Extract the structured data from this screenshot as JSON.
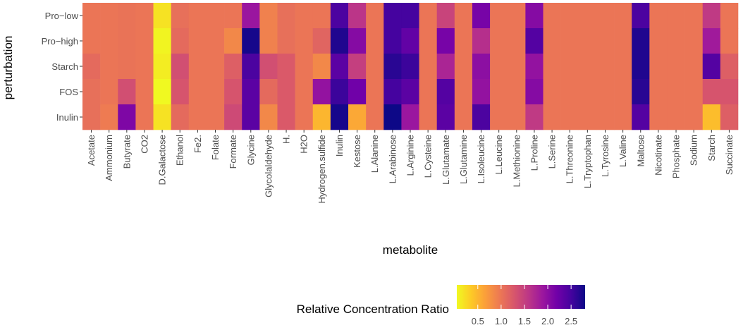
{
  "chart_data": {
    "type": "heatmap",
    "xlabel": "metabolite",
    "ylabel": "perturbation",
    "x": [
      "Acetate",
      "Ammonium",
      "Butyrate",
      "CO2",
      "D.Galactose",
      "Ethanol",
      "Fe2.",
      "Folate",
      "Formate",
      "Glycine",
      "Glycolaldehyde",
      "H.",
      "H2O",
      "Hydrogen.sulfide",
      "Inulin",
      "Kestose",
      "L.Alanine",
      "L.Arabinose",
      "L.Arginine",
      "L.Cysteine",
      "L.Glutamate",
      "L.Glutamine",
      "L.Isoleucine",
      "L.Leucine",
      "L.Methionine",
      "L.Proline",
      "L.Serine",
      "L.Threonine",
      "L.Tryptophan",
      "L.Tyrosine",
      "L.Valine",
      "Maltose",
      "Nicotinate",
      "Phosphate",
      "Sodium",
      "Starch",
      "Succinate"
    ],
    "y": [
      "Pro−low",
      "Pro−high",
      "Starch",
      "FOS",
      "Inulin"
    ],
    "values": [
      [
        1.0,
        1.0,
        1.02,
        1.0,
        0.2,
        1.05,
        1.0,
        1.0,
        1.0,
        1.9,
        0.9,
        1.05,
        1.0,
        1.0,
        2.45,
        1.6,
        1.0,
        2.5,
        2.5,
        1.0,
        1.45,
        1.0,
        2.15,
        1.0,
        1.0,
        2.05,
        1.0,
        1.0,
        1.0,
        1.0,
        1.0,
        2.45,
        1.0,
        1.0,
        1.0,
        1.55,
        1.0
      ],
      [
        1.0,
        1.0,
        1.02,
        1.0,
        0.08,
        1.1,
        1.0,
        1.0,
        0.85,
        2.75,
        0.9,
        1.05,
        1.0,
        1.15,
        2.7,
        2.05,
        1.0,
        2.5,
        2.3,
        1.0,
        2.15,
        1.0,
        1.65,
        1.0,
        1.0,
        2.4,
        1.0,
        1.0,
        1.0,
        1.0,
        1.0,
        2.7,
        1.0,
        1.0,
        1.0,
        1.85,
        1.0
      ],
      [
        1.1,
        1.0,
        1.02,
        1.0,
        0.13,
        1.35,
        1.0,
        1.0,
        1.2,
        2.45,
        1.35,
        1.25,
        1.0,
        0.85,
        2.35,
        1.5,
        1.0,
        2.65,
        2.55,
        1.0,
        1.75,
        1.0,
        2.0,
        1.0,
        1.0,
        1.95,
        1.0,
        1.0,
        1.0,
        1.0,
        1.0,
        2.7,
        1.0,
        1.0,
        1.0,
        2.4,
        1.2
      ],
      [
        1.05,
        1.0,
        1.35,
        1.0,
        0.05,
        1.3,
        1.0,
        1.0,
        1.3,
        2.35,
        1.1,
        1.25,
        1.0,
        1.95,
        2.55,
        2.2,
        1.0,
        2.5,
        2.35,
        1.0,
        2.4,
        1.0,
        1.95,
        1.0,
        1.0,
        2.05,
        1.0,
        1.0,
        1.0,
        1.0,
        1.0,
        2.65,
        1.0,
        1.0,
        1.0,
        1.3,
        1.3
      ],
      [
        1.05,
        0.95,
        2.1,
        1.0,
        0.2,
        1.1,
        1.0,
        1.0,
        1.4,
        2.35,
        0.85,
        1.25,
        1.0,
        0.5,
        2.75,
        0.6,
        1.0,
        2.8,
        1.9,
        1.0,
        2.35,
        1.0,
        2.45,
        1.0,
        1.0,
        1.55,
        1.0,
        1.0,
        1.0,
        1.0,
        1.0,
        2.4,
        1.0,
        1.0,
        1.0,
        0.45,
        1.2
      ]
    ],
    "legend": {
      "title": "Relative Concentration Ratio",
      "ticks": [
        0.5,
        1.0,
        1.5,
        2.0,
        2.5
      ],
      "tick_labels": [
        "0.5",
        "1.0",
        "1.5",
        "2.0",
        "2.5"
      ],
      "range": [
        0.05,
        2.8
      ],
      "placement": "bottom"
    },
    "colorscale": [
      "#f0f921",
      "#fdca26",
      "#fb9f3a",
      "#ed7953",
      "#d8576b",
      "#bd3786",
      "#9c179e",
      "#7201a8",
      "#46039f",
      "#0d0887"
    ]
  }
}
